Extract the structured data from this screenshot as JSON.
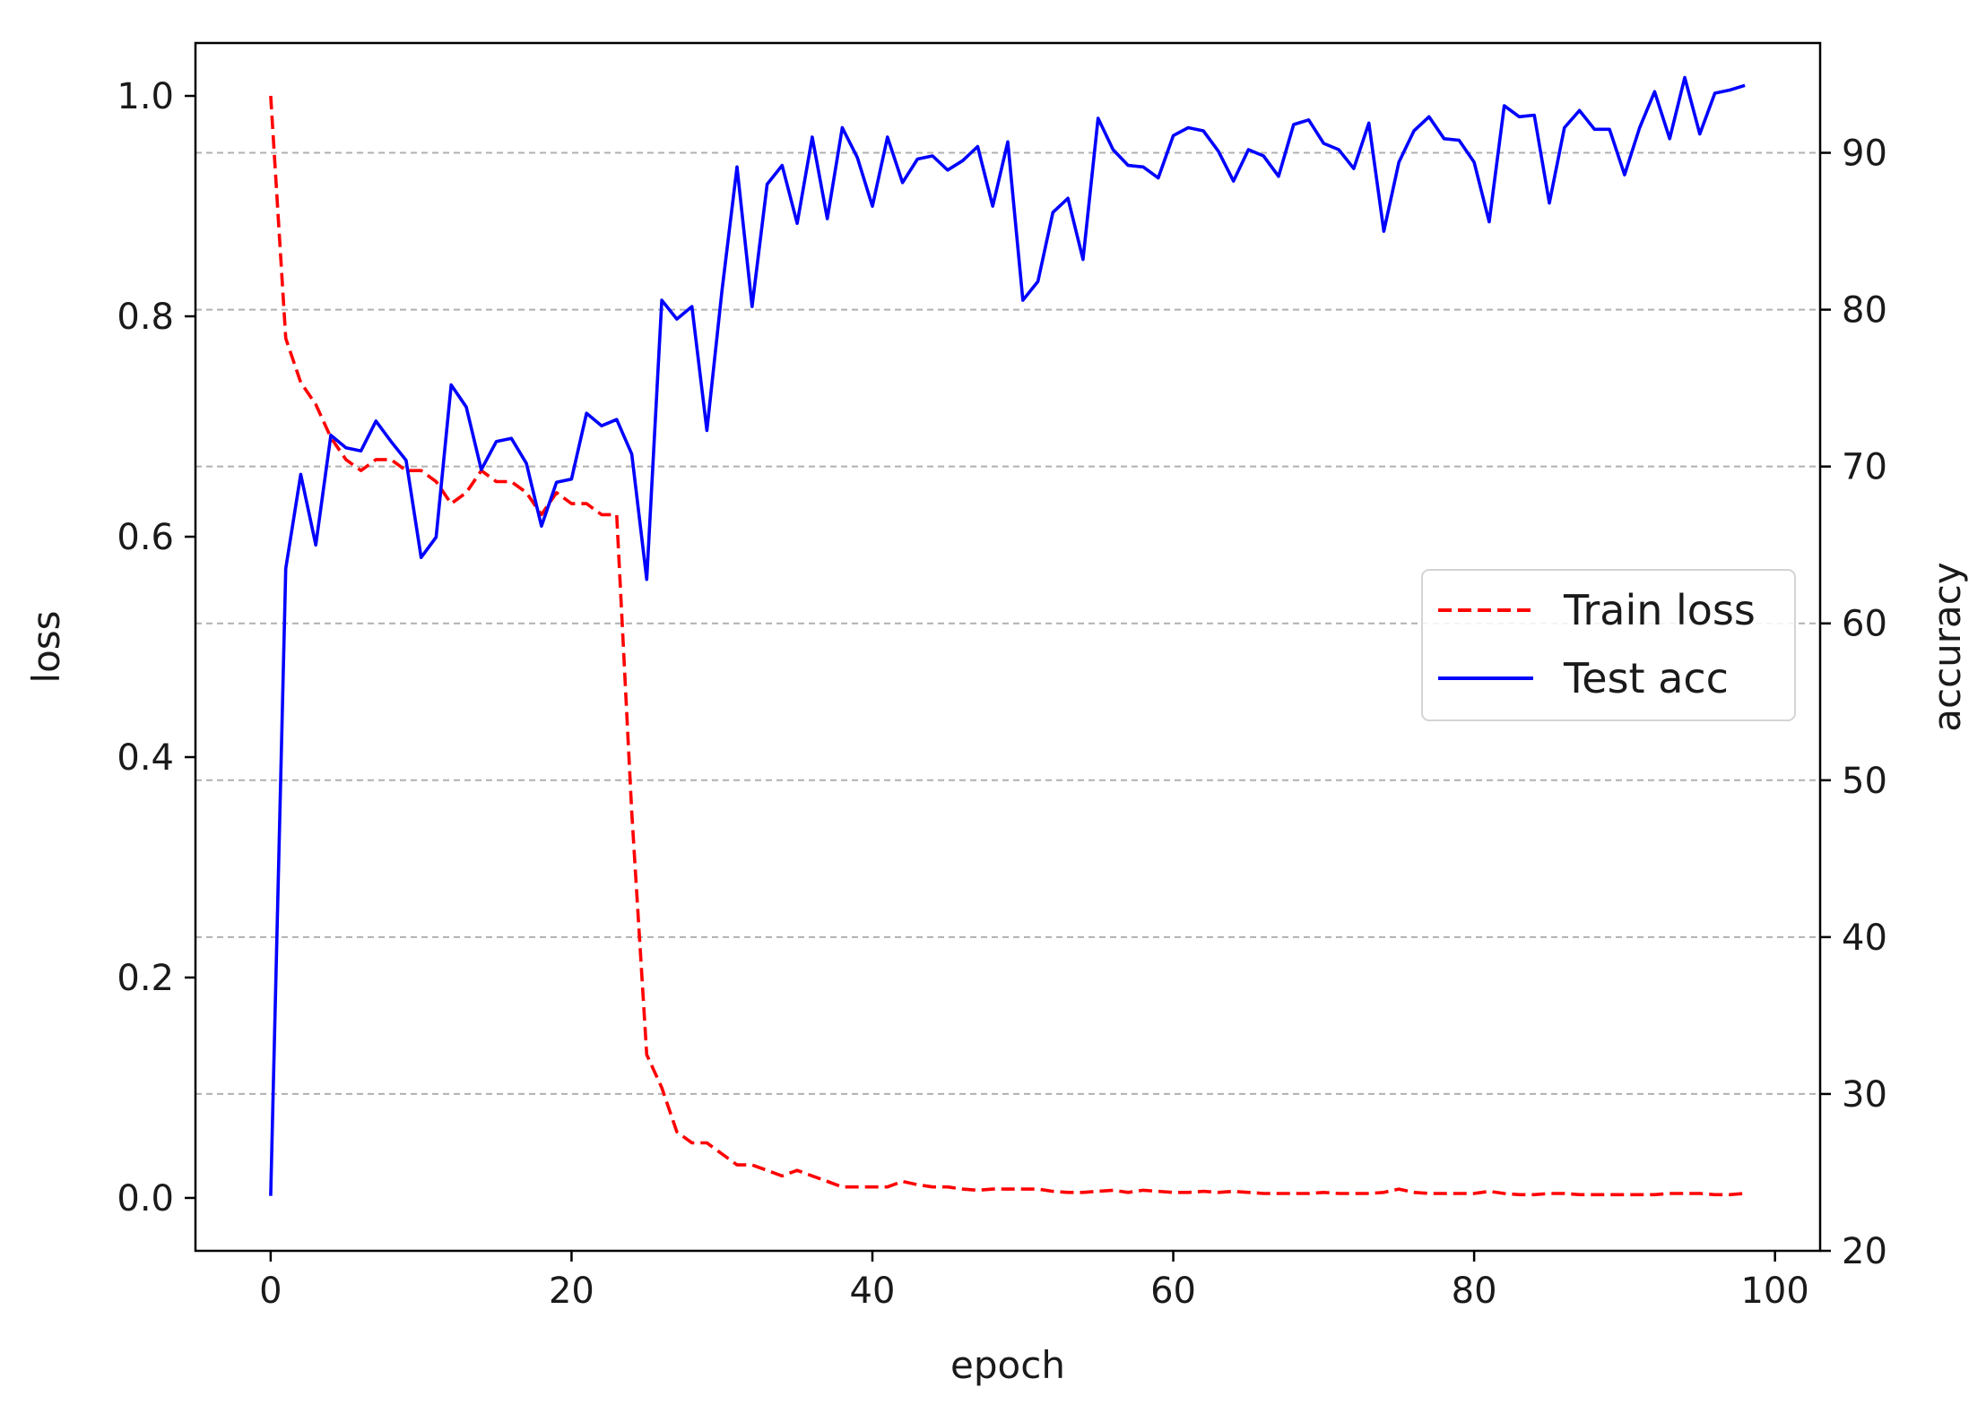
{
  "chart_data": {
    "type": "line",
    "title": "",
    "xlabel": "epoch",
    "ylabel_left": "loss",
    "ylabel_right": "accuracy",
    "xlim": [
      -5,
      103
    ],
    "ylim_left": [
      -0.048,
      1.048
    ],
    "ylim_right": [
      20,
      97
    ],
    "xticks": [
      0,
      20,
      40,
      60,
      80,
      100
    ],
    "yticks_left": [
      0.0,
      0.2,
      0.4,
      0.6,
      0.8,
      1.0
    ],
    "yticks_right": [
      20,
      30,
      40,
      50,
      60,
      70,
      80,
      90
    ],
    "grid": "horizontal-dashed-right-axis",
    "legend_position": "center-right",
    "series": [
      {
        "name": "Train loss",
        "axis": "left",
        "color": "#ff0000",
        "style": "dashed",
        "x": [
          0,
          1,
          2,
          3,
          4,
          5,
          6,
          7,
          8,
          9,
          10,
          11,
          12,
          13,
          14,
          15,
          16,
          17,
          18,
          19,
          20,
          21,
          22,
          23,
          24,
          25,
          26,
          27,
          28,
          29,
          30,
          31,
          32,
          33,
          34,
          35,
          36,
          37,
          38,
          39,
          40,
          41,
          42,
          43,
          44,
          45,
          46,
          47,
          48,
          49,
          50,
          51,
          52,
          53,
          54,
          55,
          56,
          57,
          58,
          59,
          60,
          61,
          62,
          63,
          64,
          65,
          66,
          67,
          68,
          69,
          70,
          71,
          72,
          73,
          74,
          75,
          76,
          77,
          78,
          79,
          80,
          81,
          82,
          83,
          84,
          85,
          86,
          87,
          88,
          89,
          90,
          91,
          92,
          93,
          94,
          95,
          96,
          97,
          98
        ],
        "values": [
          1.0,
          0.78,
          0.74,
          0.72,
          0.69,
          0.67,
          0.66,
          0.67,
          0.67,
          0.66,
          0.66,
          0.65,
          0.63,
          0.64,
          0.66,
          0.65,
          0.65,
          0.64,
          0.62,
          0.64,
          0.63,
          0.63,
          0.62,
          0.62,
          0.35,
          0.13,
          0.1,
          0.06,
          0.05,
          0.05,
          0.04,
          0.03,
          0.03,
          0.025,
          0.02,
          0.025,
          0.02,
          0.015,
          0.01,
          0.01,
          0.01,
          0.01,
          0.015,
          0.012,
          0.01,
          0.01,
          0.008,
          0.007,
          0.008,
          0.008,
          0.008,
          0.008,
          0.006,
          0.005,
          0.005,
          0.006,
          0.007,
          0.005,
          0.007,
          0.006,
          0.005,
          0.005,
          0.006,
          0.005,
          0.006,
          0.005,
          0.004,
          0.004,
          0.004,
          0.004,
          0.005,
          0.004,
          0.004,
          0.004,
          0.005,
          0.008,
          0.005,
          0.004,
          0.004,
          0.004,
          0.004,
          0.006,
          0.004,
          0.003,
          0.003,
          0.004,
          0.004,
          0.003,
          0.003,
          0.003,
          0.003,
          0.003,
          0.003,
          0.004,
          0.004,
          0.004,
          0.003,
          0.003,
          0.004
        ]
      },
      {
        "name": "Test acc",
        "axis": "right",
        "color": "#0000ff",
        "style": "solid",
        "x": [
          0,
          1,
          2,
          3,
          4,
          5,
          6,
          7,
          8,
          9,
          10,
          11,
          12,
          13,
          14,
          15,
          16,
          17,
          18,
          19,
          20,
          21,
          22,
          23,
          24,
          25,
          26,
          27,
          28,
          29,
          30,
          31,
          32,
          33,
          34,
          35,
          36,
          37,
          38,
          39,
          40,
          41,
          42,
          43,
          44,
          45,
          46,
          47,
          48,
          49,
          50,
          51,
          52,
          53,
          54,
          55,
          56,
          57,
          58,
          59,
          60,
          61,
          62,
          63,
          64,
          65,
          66,
          67,
          68,
          69,
          70,
          71,
          72,
          73,
          74,
          75,
          76,
          77,
          78,
          79,
          80,
          81,
          82,
          83,
          84,
          85,
          86,
          87,
          88,
          89,
          90,
          91,
          92,
          93,
          94,
          95,
          96,
          97,
          98
        ],
        "values": [
          23.5,
          63.5,
          69.5,
          65.0,
          72.0,
          71.2,
          71.0,
          72.9,
          71.6,
          70.4,
          64.2,
          65.5,
          75.2,
          73.8,
          69.8,
          71.6,
          71.8,
          70.2,
          66.2,
          69.0,
          69.2,
          73.4,
          72.6,
          73.0,
          70.8,
          62.8,
          80.6,
          79.4,
          80.2,
          72.3,
          81.2,
          89.1,
          80.2,
          88.0,
          89.2,
          85.5,
          91.0,
          85.8,
          91.6,
          89.7,
          86.6,
          91.0,
          88.1,
          89.6,
          89.8,
          88.9,
          89.5,
          90.4,
          86.6,
          90.7,
          80.6,
          81.8,
          86.2,
          87.1,
          83.2,
          92.2,
          90.2,
          89.2,
          89.1,
          88.4,
          91.1,
          91.6,
          91.4,
          90.1,
          88.2,
          90.2,
          89.8,
          88.5,
          91.8,
          92.1,
          90.6,
          90.2,
          89.0,
          91.9,
          85.0,
          89.4,
          91.4,
          92.3,
          90.9,
          90.8,
          89.4,
          85.6,
          93.0,
          92.3,
          92.4,
          86.8,
          91.6,
          92.7,
          91.5,
          91.5,
          88.6,
          91.6,
          93.9,
          90.9,
          94.8,
          91.2,
          93.8,
          94.0,
          94.3
        ]
      }
    ]
  }
}
